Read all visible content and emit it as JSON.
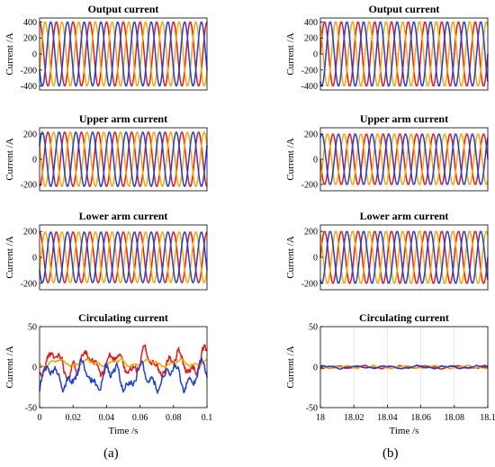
{
  "colors": {
    "phase_a": "#e31a1c",
    "phase_b": "#f5a800",
    "phase_c": "#1f3fd8",
    "axis": "#000000",
    "grid": "#d9d9d9"
  },
  "labels": {
    "a": "(a)",
    "b": "(b)"
  },
  "chart_data": [
    {
      "id": "a1",
      "type": "line",
      "title": "Output current",
      "xlabel": "",
      "ylabel": "Current /A",
      "xlim": [
        0,
        0.1
      ],
      "ylim": [
        -450,
        450
      ],
      "yticks": [
        -400,
        -200,
        0,
        200,
        400
      ],
      "xticks": [],
      "grid": false,
      "signal": "sine",
      "frequency_hz": 100,
      "series": [
        {
          "color_key": "phase_a",
          "amplitude": 400,
          "phase_deg": 90
        },
        {
          "color_key": "phase_b",
          "amplitude": 400,
          "phase_deg": -30
        },
        {
          "color_key": "phase_c",
          "amplitude": 400,
          "phase_deg": 210
        }
      ]
    },
    {
      "id": "b1",
      "type": "line",
      "title": "Output current",
      "xlabel": "",
      "ylabel": "Current /A",
      "xlim": [
        18,
        18.1
      ],
      "ylim": [
        -450,
        450
      ],
      "yticks": [
        -400,
        -200,
        0,
        200,
        400
      ],
      "xticks": [],
      "grid": true,
      "signal": "sine",
      "frequency_hz": 100,
      "series": [
        {
          "color_key": "phase_a",
          "amplitude": 400,
          "phase_deg": 0
        },
        {
          "color_key": "phase_b",
          "amplitude": 400,
          "phase_deg": 120
        },
        {
          "color_key": "phase_c",
          "amplitude": 400,
          "phase_deg": -120
        }
      ]
    },
    {
      "id": "a2",
      "type": "line",
      "title": "Upper arm current",
      "xlabel": "",
      "ylabel": "Current /A",
      "xlim": [
        0,
        0.1
      ],
      "ylim": [
        -250,
        250
      ],
      "yticks": [
        -200,
        0,
        200
      ],
      "xticks": [],
      "grid": false,
      "signal": "sine",
      "frequency_hz": 100,
      "series": [
        {
          "color_key": "phase_a",
          "amplitude": 215,
          "phase_deg": -90
        },
        {
          "color_key": "phase_b",
          "amplitude": 215,
          "phase_deg": 150
        },
        {
          "color_key": "phase_c",
          "amplitude": 215,
          "phase_deg": 30
        }
      ]
    },
    {
      "id": "b2",
      "type": "line",
      "title": "Upper arm current",
      "xlabel": "",
      "ylabel": "Current /A",
      "xlim": [
        18,
        18.1
      ],
      "ylim": [
        -250,
        250
      ],
      "yticks": [
        -200,
        0,
        200
      ],
      "xticks": [],
      "grid": true,
      "signal": "sine",
      "frequency_hz": 100,
      "series": [
        {
          "color_key": "phase_a",
          "amplitude": 200,
          "phase_deg": 180
        },
        {
          "color_key": "phase_b",
          "amplitude": 200,
          "phase_deg": -60
        },
        {
          "color_key": "phase_c",
          "amplitude": 200,
          "phase_deg": 60
        }
      ]
    },
    {
      "id": "a3",
      "type": "line",
      "title": "Lower arm current",
      "xlabel": "",
      "ylabel": "Current /A",
      "xlim": [
        0,
        0.1
      ],
      "ylim": [
        -250,
        250
      ],
      "yticks": [
        -200,
        0,
        200
      ],
      "xticks": [],
      "grid": false,
      "signal": "sine",
      "frequency_hz": 100,
      "series": [
        {
          "color_key": "phase_a",
          "amplitude": 195,
          "phase_deg": 90
        },
        {
          "color_key": "phase_b",
          "amplitude": 195,
          "phase_deg": -30
        },
        {
          "color_key": "phase_c",
          "amplitude": 195,
          "phase_deg": 210
        }
      ]
    },
    {
      "id": "b3",
      "type": "line",
      "title": "Lower arm current",
      "xlabel": "",
      "ylabel": "Current /A",
      "xlim": [
        18,
        18.1
      ],
      "ylim": [
        -250,
        250
      ],
      "yticks": [
        -200,
        0,
        200
      ],
      "xticks": [],
      "grid": true,
      "signal": "sine",
      "frequency_hz": 100,
      "series": [
        {
          "color_key": "phase_a",
          "amplitude": 200,
          "phase_deg": 0
        },
        {
          "color_key": "phase_b",
          "amplitude": 200,
          "phase_deg": 120
        },
        {
          "color_key": "phase_c",
          "amplitude": 200,
          "phase_deg": -120
        }
      ]
    },
    {
      "id": "a4",
      "type": "line",
      "title": "Circulating current",
      "xlabel": "Time /s",
      "ylabel": "Current /A",
      "xlim": [
        0,
        0.1
      ],
      "ylim": [
        -50,
        50
      ],
      "yticks": [
        -50,
        0,
        50
      ],
      "xticks": [
        0,
        0.02,
        0.04,
        0.06,
        0.08,
        0.1
      ],
      "xtick_labels": [
        "0",
        "0.02",
        "0.04",
        "0.06",
        "0.08",
        "0.1"
      ],
      "grid": false,
      "signal": "noise",
      "series": [
        {
          "color_key": "phase_a",
          "offset": 5,
          "amplitude": 18,
          "seed": 11
        },
        {
          "color_key": "phase_b",
          "offset": 5,
          "amplitude": 5,
          "seed": 23
        },
        {
          "color_key": "phase_c",
          "offset": -12,
          "amplitude": 18,
          "seed": 37
        }
      ]
    },
    {
      "id": "b4",
      "type": "line",
      "title": "Circulating current",
      "xlabel": "Time /s",
      "ylabel": "Current /A",
      "xlim": [
        18,
        18.1
      ],
      "ylim": [
        -50,
        50
      ],
      "yticks": [
        -50,
        0,
        50
      ],
      "xticks": [
        18,
        18.02,
        18.04,
        18.06,
        18.08,
        18.1
      ],
      "xtick_labels": [
        "18",
        "18.02",
        "18.04",
        "18.06",
        "18.08",
        "18.1"
      ],
      "grid": true,
      "signal": "noise",
      "series": [
        {
          "color_key": "phase_a",
          "offset": 0,
          "amplitude": 2,
          "seed": 5
        },
        {
          "color_key": "phase_b",
          "offset": 0,
          "amplitude": 2,
          "seed": 9
        },
        {
          "color_key": "phase_c",
          "offset": 0,
          "amplitude": 2,
          "seed": 13
        }
      ]
    }
  ]
}
